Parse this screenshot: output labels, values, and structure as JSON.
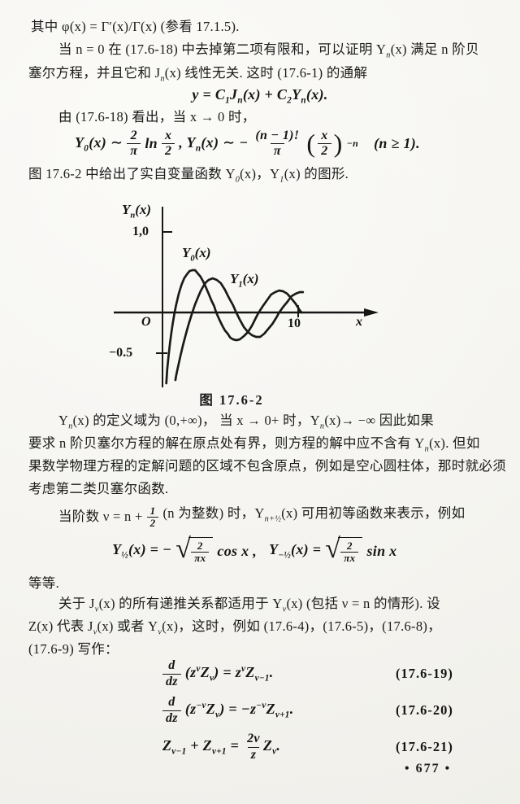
{
  "page": {
    "number_label": "• 677 •"
  },
  "para": {
    "l1": "其中 φ(x) = Γ′(x)/Γ(x)  (参看 17.1.5).",
    "l2": "当 n = 0 在 (17.6-18) 中去掉第二项有限和，可以证明 Y_{n}(x) 满足 n 阶贝",
    "l3": "塞尔方程，并且它和 J_{n}(x) 线性无关. 这时 (17.6-1) 的通解",
    "l4": "由 (17.6-18) 看出，当 x → 0 时，",
    "l5": "图 17.6-2 中给出了实自变量函数 Y_{0}(x)，Y_{1}(x) 的图形.",
    "l6": "Y_{n}(x) 的定义域为 (0,+∞)， 当 x → 0+ 时，Y_{n}(x)→ −∞  因此如果",
    "l7": "要求 n 阶贝塞尔方程的解在原点处有界，则方程的解中应不含有 Y_{n}(x).  但如",
    "l8": "果数学物理方程的定解问题的区域不包含原点，例如是空心圆柱体，那时就必须",
    "l9": "考虑第二类贝塞尔函数.",
    "l10a": "当阶数  ν = n +",
    "l10frac": {
      "num": "1",
      "den": "2"
    },
    "l10b": "(n 为整数) 时，Y_{n+½}(x) 可用初等函数来表示，例如",
    "l11": "等等.",
    "l12": "关于 J_{ν}(x) 的所有递推关系都适用于 Y_{ν}(x)  (包括 ν = n 的情形).  设",
    "l13": "Z(x) 代表 J_{ν}(x) 或者 Y_{ν}(x)，这时，例如 (17.6-4)，(17.6-5)，(17.6-8)，",
    "l14": "(17.6-9) 写作："
  },
  "equations": {
    "general": "y = C_{1}J_{n}(x) + C_{2}Y_{n}(x).",
    "asym": {
      "p1": "Y_{0}(x) ∼",
      "f1": {
        "num": "2",
        "den": "π"
      },
      "p2": "ln",
      "f2": {
        "num": "x",
        "den": "2"
      },
      "p3": ",   Y_{n}(x) ∼ −",
      "f3": {
        "num": "(n − 1)!",
        "den": "π"
      },
      "lp": "(",
      "f4": {
        "num": "x",
        "den": "2"
      },
      "rp": ")",
      "exp": "−n",
      "p4": "(n ≥ 1)."
    },
    "half": {
      "p1": "Y_{½}(x) = −",
      "f1": {
        "num": "2",
        "den": "πx"
      },
      "p2": "cos x ,",
      "p3": "Y_{−½}(x) =",
      "f2": {
        "num": "2",
        "den": "πx"
      },
      "p4": "sin x"
    },
    "eq19": {
      "fnum": "d",
      "fden": "dz",
      "body": "(z^{ν}Z_{ν}) = z^{ν}Z_{ν−1}.",
      "label": "(17.6-19)"
    },
    "eq20": {
      "fnum": "d",
      "fden": "dz",
      "body": "(z^{−ν}Z_{ν}) = −z^{−ν}Z_{ν+1}.",
      "label": "(17.6-20)"
    },
    "eq21": {
      "p1": "Z_{ν−1} + Z_{ν+1} =",
      "fnum": "2ν",
      "fden": "z",
      "p2": "Z_{ν}.",
      "label": "(17.6-21)"
    }
  },
  "figure": {
    "ylabel": "Y_{n}(x)",
    "ytick_top": "1,0",
    "ytick_bottom": "−0.5",
    "origin": "O",
    "xtick": "10",
    "xlabel": "x",
    "label_y0": "Y_{0}(x)",
    "label_y1": "Y_{1}(x)",
    "caption": "图  17.6-2",
    "chart_data": {
      "type": "line",
      "title": "图 17.6-2",
      "xlabel": "x",
      "ylabel": "Yn(x)",
      "xlim": [
        0,
        15.3
      ],
      "ylim": [
        -0.9,
        1.3
      ],
      "xticks": [
        10
      ],
      "yticks": [
        1.0,
        -0.5
      ],
      "legend_position": "inline-curve-labels",
      "grid": false,
      "series": [
        {
          "name": "Y0(x)",
          "points": [
            [
              0.28,
              -0.87
            ],
            [
              0.35,
              -0.7
            ],
            [
              0.45,
              -0.53
            ],
            [
              0.55,
              -0.38
            ],
            [
              0.65,
              -0.25
            ],
            [
              0.75,
              -0.14
            ],
            [
              0.89,
              0
            ],
            [
              1.0,
              0.09
            ],
            [
              1.2,
              0.23
            ],
            [
              1.4,
              0.34
            ],
            [
              1.6,
              0.42
            ],
            [
              1.8,
              0.47
            ],
            [
              2.0,
              0.51
            ],
            [
              2.2,
              0.52
            ],
            [
              2.4,
              0.52
            ],
            [
              2.6,
              0.48
            ],
            [
              2.8,
              0.44
            ],
            [
              3.0,
              0.38
            ],
            [
              3.2,
              0.31
            ],
            [
              3.4,
              0.23
            ],
            [
              3.6,
              0.15
            ],
            [
              3.8,
              0.08
            ],
            [
              3.96,
              0
            ],
            [
              4.2,
              -0.09
            ],
            [
              4.4,
              -0.16
            ],
            [
              4.6,
              -0.22
            ],
            [
              4.8,
              -0.26
            ],
            [
              5.0,
              -0.31
            ],
            [
              5.2,
              -0.33
            ],
            [
              5.45,
              -0.34
            ],
            [
              5.7,
              -0.33
            ],
            [
              6.0,
              -0.29
            ],
            [
              6.3,
              -0.24
            ],
            [
              6.6,
              -0.16
            ],
            [
              6.9,
              -0.06
            ],
            [
              7.09,
              0
            ],
            [
              7.4,
              0.08
            ],
            [
              7.7,
              0.15
            ],
            [
              8.0,
              0.22
            ],
            [
              8.3,
              0.25
            ],
            [
              8.6,
              0.27
            ],
            [
              8.9,
              0.26
            ],
            [
              9.2,
              0.23
            ],
            [
              9.5,
              0.17
            ],
            [
              9.8,
              0.11
            ],
            [
              10.1,
              0.03
            ],
            [
              10.25,
              0
            ]
          ]
        },
        {
          "name": "Y1(x)",
          "points": [
            [
              0.95,
              -0.83
            ],
            [
              1.0,
              -0.78
            ],
            [
              1.1,
              -0.7
            ],
            [
              1.3,
              -0.55
            ],
            [
              1.5,
              -0.41
            ],
            [
              1.7,
              -0.28
            ],
            [
              1.9,
              -0.16
            ],
            [
              2.1,
              -0.05
            ],
            [
              2.2,
              0
            ],
            [
              2.4,
              0.1
            ],
            [
              2.6,
              0.18
            ],
            [
              2.8,
              0.26
            ],
            [
              3.0,
              0.32
            ],
            [
              3.2,
              0.37
            ],
            [
              3.4,
              0.4
            ],
            [
              3.7,
              0.42
            ],
            [
              4.0,
              0.4
            ],
            [
              4.3,
              0.36
            ],
            [
              4.6,
              0.28
            ],
            [
              4.9,
              0.18
            ],
            [
              5.2,
              0.09
            ],
            [
              5.43,
              0
            ],
            [
              5.7,
              -0.09
            ],
            [
              6.0,
              -0.18
            ],
            [
              6.3,
              -0.24
            ],
            [
              6.6,
              -0.28
            ],
            [
              6.9,
              -0.3
            ],
            [
              7.2,
              -0.3
            ],
            [
              7.5,
              -0.26
            ],
            [
              7.8,
              -0.2
            ],
            [
              8.1,
              -0.14
            ],
            [
              8.4,
              -0.06
            ],
            [
              8.6,
              0
            ],
            [
              8.9,
              0.07
            ],
            [
              9.2,
              0.13
            ],
            [
              9.5,
              0.2
            ],
            [
              9.8,
              0.23
            ],
            [
              10.1,
              0.25
            ],
            [
              10.35,
              0.25
            ]
          ]
        }
      ]
    }
  }
}
